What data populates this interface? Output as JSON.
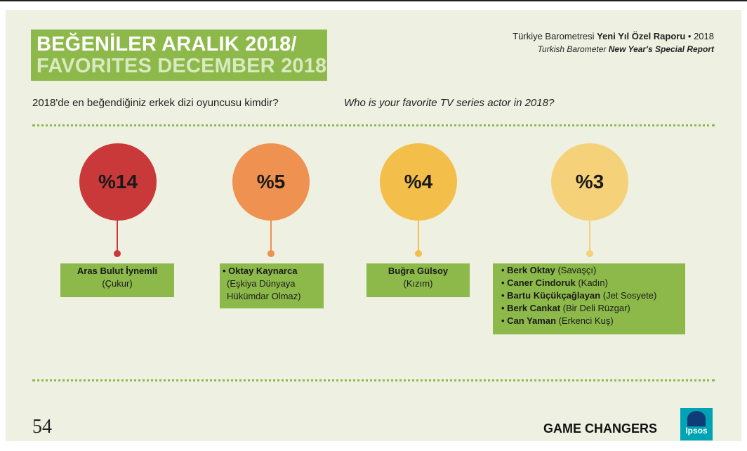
{
  "header": {
    "title_tr": "BEĞENİLER ARALIK 2018/",
    "title_en": "FAVORITES DECEMBER 2018",
    "report_tr_prefix": "Türkiye Barometresi ",
    "report_tr_bold": "Yeni Yıl Özel Raporu",
    "report_tr_suffix": " • 2018",
    "report_en_prefix": "Turkish Barometer ",
    "report_en_bold": "New Year's Special Report"
  },
  "question": {
    "tr": "2018'de en beğendiğiniz erkek dizi oyuncusu kimdir?",
    "en": "Who is your favorite TV series actor in 2018?"
  },
  "results": [
    {
      "percent_label": "%14",
      "color": "#c9393a",
      "entries": [
        {
          "name": "Aras Bulut İynemli",
          "show": "(Çukur)"
        }
      ]
    },
    {
      "percent_label": "%5",
      "color": "#ef9150",
      "entries": [
        {
          "name": "• Oktay Kaynarca",
          "show": "(Eşkiya Dünyaya Hükümdar Olmaz)"
        }
      ]
    },
    {
      "percent_label": "%4",
      "color": "#f3be49",
      "entries": [
        {
          "name": "Buğra Gülsoy",
          "show": "(Kızım)"
        }
      ]
    },
    {
      "percent_label": "%3",
      "color": "#f5d17a",
      "entries": [
        {
          "name": "• Berk Oktay",
          "show": "(Savaşçı)"
        },
        {
          "name": "• Caner Cindoruk",
          "show": "(Kadın)"
        },
        {
          "name": "• Bartu Küçükçağlayan",
          "show": "(Jet Sosyete)"
        },
        {
          "name": "• Berk Cankat",
          "show": "(Bir Deli Rüzgar)"
        },
        {
          "name": "• Can Yaman",
          "show": "(Erkenci Kuş)"
        }
      ]
    }
  ],
  "footer": {
    "page_number": "54",
    "brand": "GAME CHANGERS",
    "logo_text": "Ipsos"
  }
}
